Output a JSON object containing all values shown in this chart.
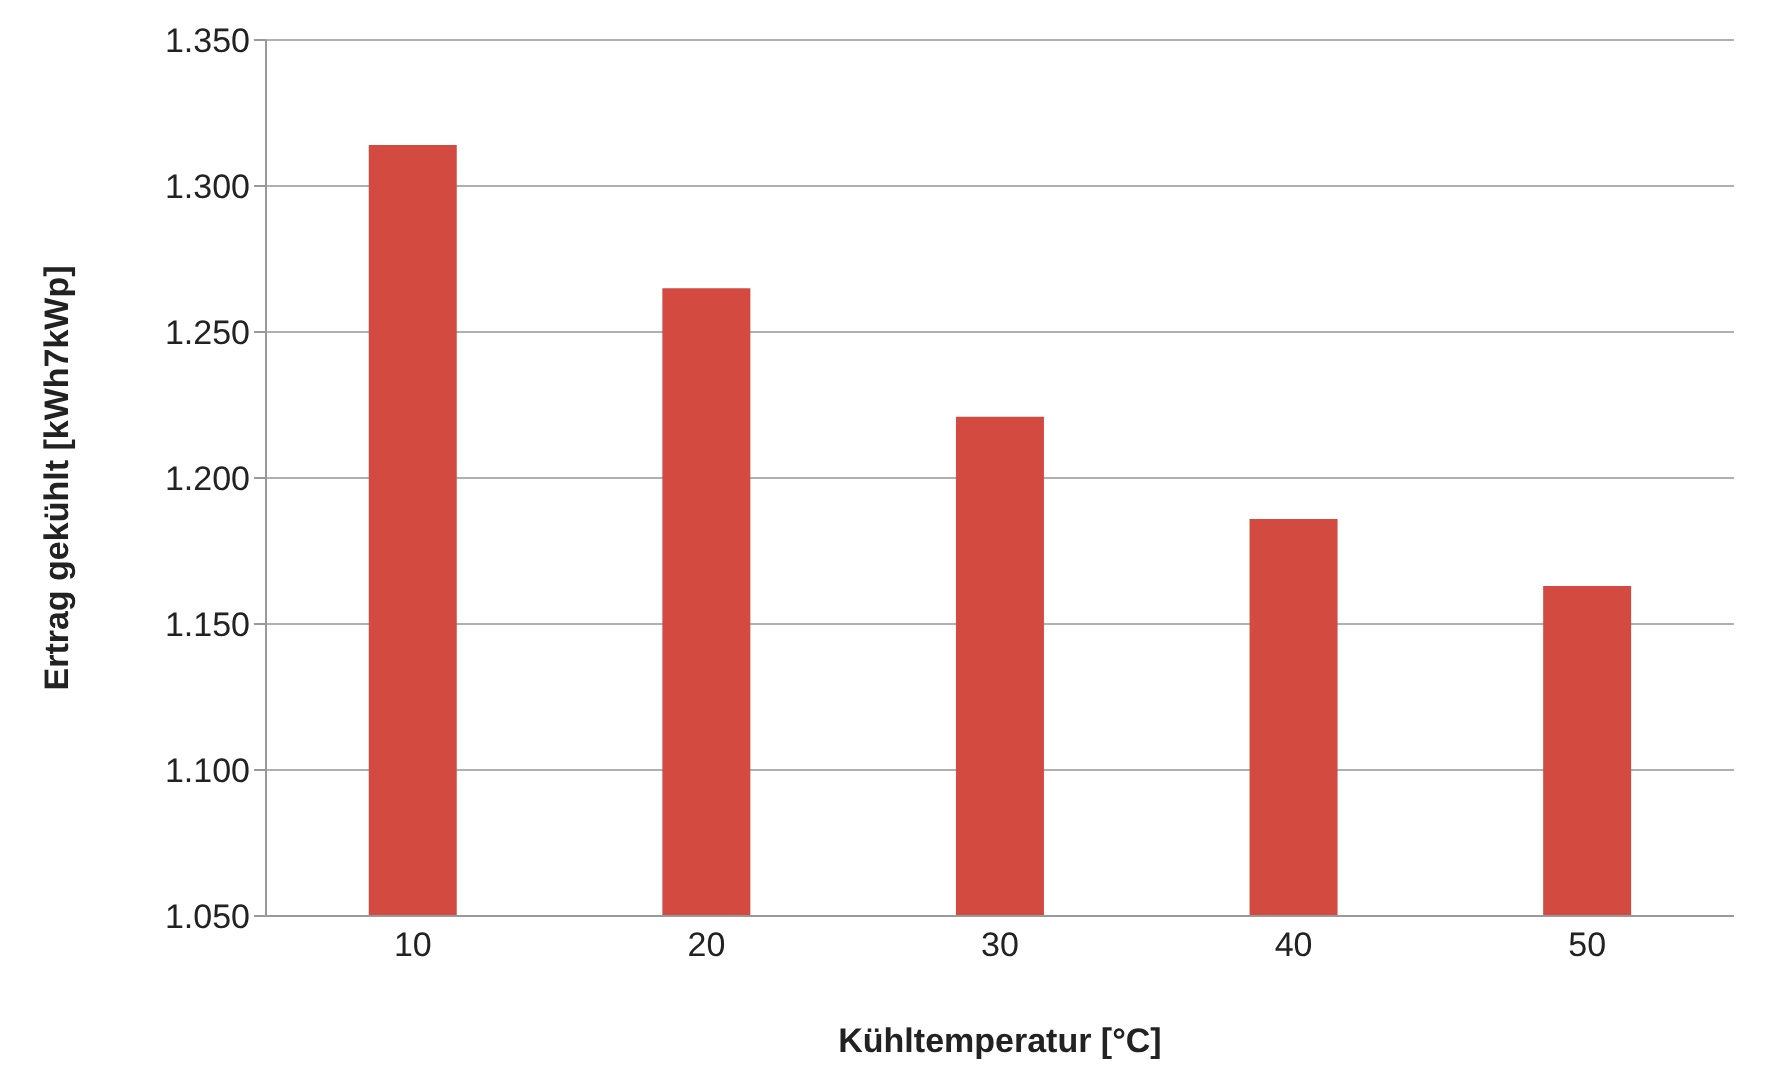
{
  "chart_data": {
    "type": "bar",
    "xlabel": "Kühltemperatur [°C]",
    "ylabel": "Ertrag gekühlt [kWh7kWp]",
    "categories": [
      "10",
      "20",
      "30",
      "40",
      "50"
    ],
    "values": [
      1314,
      1265,
      1221,
      1186,
      1163
    ],
    "color": "#d24a40",
    "ylim": [
      1050,
      1350
    ],
    "yticks": [
      {
        "value": 1050,
        "label": "1.050"
      },
      {
        "value": 1100,
        "label": "1.100"
      },
      {
        "value": 1150,
        "label": "1.150"
      },
      {
        "value": 1200,
        "label": "1.200"
      },
      {
        "value": 1250,
        "label": "1.250"
      },
      {
        "value": 1300,
        "label": "1.300"
      },
      {
        "value": 1350,
        "label": "1.350"
      }
    ],
    "grid": "y"
  }
}
